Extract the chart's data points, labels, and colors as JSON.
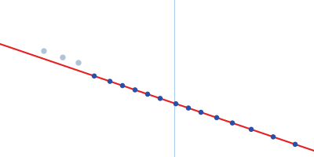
{
  "background_color": "#ffffff",
  "line_color": "#e82020",
  "line_x0": 0.0,
  "line_x1": 1.0,
  "line_y0": 0.78,
  "line_y1": 0.44,
  "included_points_x": [
    0.3,
    0.35,
    0.39,
    0.43,
    0.47,
    0.51,
    0.56,
    0.6,
    0.64,
    0.69,
    0.74,
    0.8,
    0.87,
    0.94
  ],
  "excluded_points_x": [
    0.14,
    0.2,
    0.25
  ],
  "included_color": "#2a4fa8",
  "excluded_color": "#b0c4d8",
  "vline_x": 0.555,
  "vline_color": "#aaccee",
  "marker_size_included": 22,
  "marker_size_excluded": 28,
  "xlim": [
    0.0,
    1.0
  ],
  "ylim": [
    0.42,
    0.92
  ],
  "linewidth": 1.5
}
